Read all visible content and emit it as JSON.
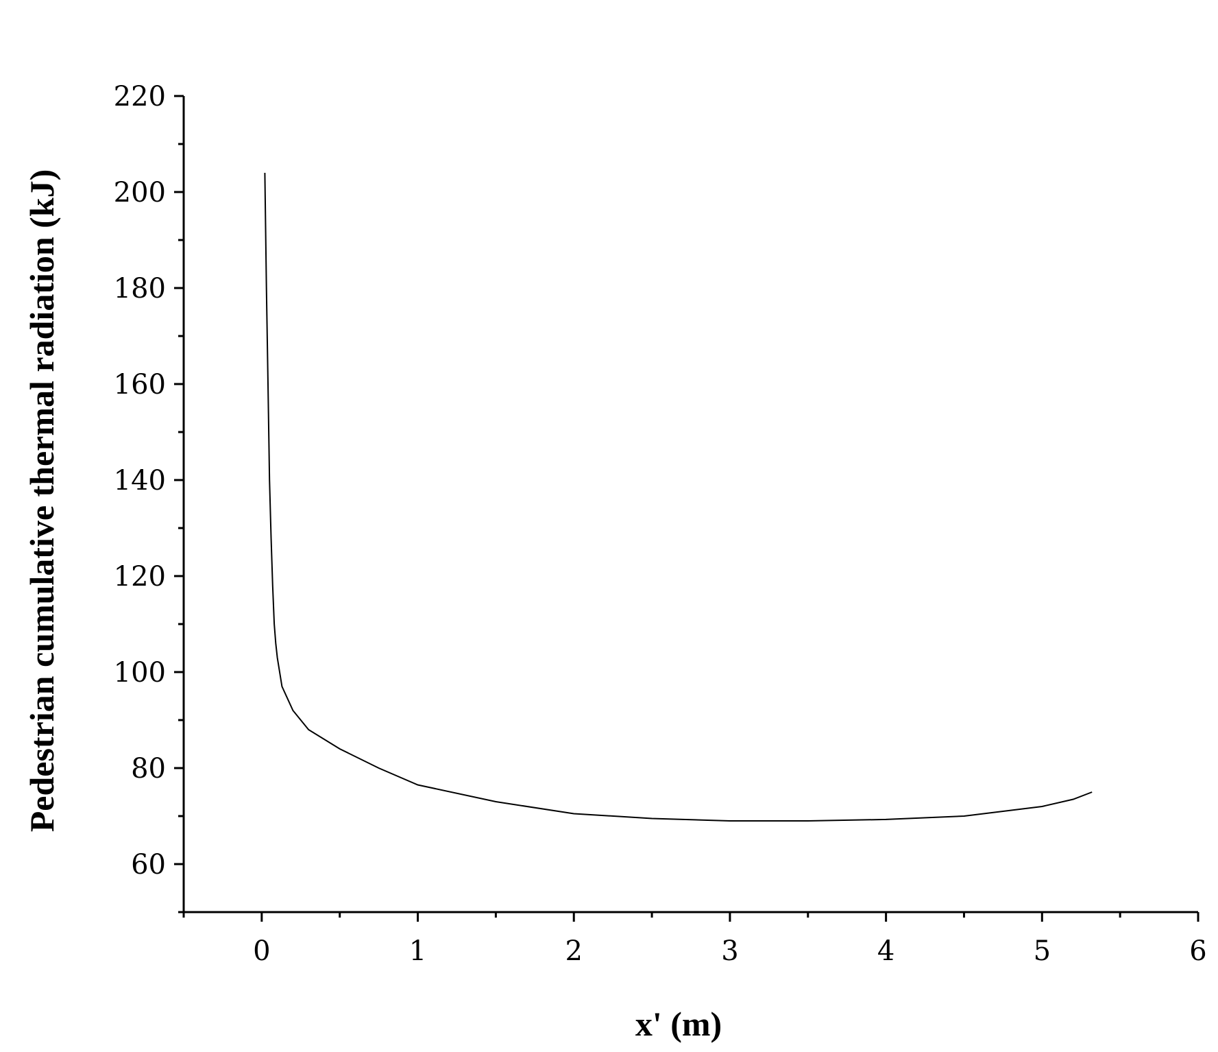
{
  "chart_data": {
    "type": "line",
    "title": "",
    "xlabel": "x' (m)",
    "ylabel": "Pedestrian cumulative thermal radiation (kJ)",
    "xlim": [
      -0.5,
      6
    ],
    "ylim": [
      50,
      220
    ],
    "xticks": [
      0,
      1,
      2,
      3,
      4,
      5,
      6
    ],
    "xtick_labels": [
      "0",
      "1",
      "2",
      "3",
      "4",
      "5",
      "6"
    ],
    "xminor_step": 0.5,
    "yticks": [
      60,
      80,
      100,
      120,
      140,
      160,
      180,
      200,
      220
    ],
    "ytick_labels": [
      "60",
      "80",
      "100",
      "120",
      "140",
      "160",
      "180",
      "200",
      "220"
    ],
    "yminor_step": 10,
    "grid": false,
    "legend": "none",
    "line_color": "#000000",
    "series": [
      {
        "x": [
          0.02,
          0.03,
          0.04,
          0.05,
          0.06,
          0.07,
          0.08,
          0.09,
          0.1,
          0.13,
          0.2,
          0.3,
          0.5,
          0.75,
          1.0,
          1.5,
          2.0,
          2.5,
          3.0,
          3.5,
          4.0,
          4.5,
          5.0,
          5.2,
          5.32
        ],
        "y": [
          204,
          180,
          160,
          140,
          128,
          118,
          110,
          106,
          103,
          97,
          92,
          88,
          84,
          80,
          76.5,
          73,
          70.5,
          69.5,
          69,
          69,
          69.3,
          70,
          72,
          73.5,
          75
        ]
      }
    ]
  }
}
